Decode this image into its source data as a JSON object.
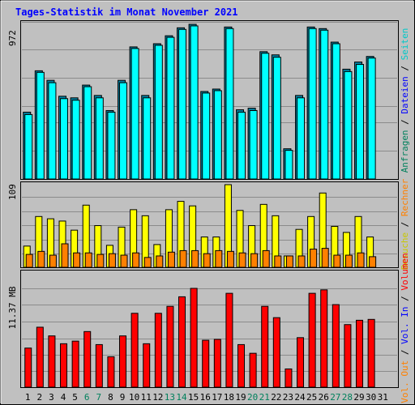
{
  "title": "Tages-Statistik im Monat November 2021",
  "colors": {
    "background": "#c0c0c0",
    "title": "#0000ff",
    "hits": "#00ffff",
    "files": "#0080ff",
    "pages": "#00ffff",
    "visits": "#ffff00",
    "sites": "#ff8000",
    "volume": "#ff0000",
    "volume_in": "#0000ff",
    "volume_out": "#ff8000",
    "weekend_day": "#00805c",
    "weekday": "#000000"
  },
  "right_labels": {
    "top": [
      {
        "text": "Anfragen",
        "color": "#00805c"
      },
      {
        "text": "Dateien",
        "color": "#0000ff"
      },
      {
        "text": "Seiten",
        "color": "#00c8c8"
      }
    ],
    "middle": [
      {
        "text": "Besuche",
        "color": "#c8c800"
      },
      {
        "text": "Rechner",
        "color": "#ff8000"
      }
    ],
    "bottom": [
      {
        "text": "Vol. Out",
        "color": "#ff8000"
      },
      {
        "text": "Vol. In",
        "color": "#0000ff"
      },
      {
        "text": "Volumen",
        "color": "#ff0000"
      }
    ],
    "separator": " / "
  },
  "chart_data": [
    {
      "type": "bar",
      "name": "hits-files",
      "ylabel": "972",
      "ylim": [
        0,
        972
      ],
      "categories": [
        "1",
        "2",
        "3",
        "4",
        "5",
        "6",
        "7",
        "8",
        "9",
        "10",
        "11",
        "12",
        "13",
        "14",
        "15",
        "16",
        "17",
        "18",
        "19",
        "20",
        "21",
        "22",
        "23",
        "24",
        "25",
        "26",
        "27",
        "28",
        "29",
        "30",
        "31"
      ],
      "series": [
        {
          "name": "Anfragen",
          "values": [
            420,
            680,
            620,
            520,
            510,
            590,
            525,
            430,
            620,
            830,
            525,
            850,
            900,
            950,
            972,
            550,
            565,
            955,
            435,
            445,
            800,
            780,
            190,
            525,
            955,
            945,
            860,
            690,
            735,
            770,
            0
          ]
        },
        {
          "name": "Dateien",
          "values": [
            405,
            670,
            605,
            505,
            495,
            580,
            510,
            420,
            605,
            820,
            510,
            840,
            890,
            940,
            962,
            540,
            555,
            945,
            420,
            430,
            790,
            765,
            180,
            510,
            945,
            935,
            850,
            675,
            720,
            760,
            0
          ]
        }
      ]
    },
    {
      "type": "bar",
      "name": "visits-sites",
      "ylabel": "109",
      "ylim": [
        0,
        109
      ],
      "categories": [
        "1",
        "2",
        "3",
        "4",
        "5",
        "6",
        "7",
        "8",
        "9",
        "10",
        "11",
        "12",
        "13",
        "14",
        "15",
        "16",
        "17",
        "18",
        "19",
        "20",
        "21",
        "22",
        "23",
        "24",
        "25",
        "26",
        "27",
        "28",
        "29",
        "30",
        "31"
      ],
      "series": [
        {
          "name": "Besuche",
          "values": [
            28,
            67,
            64,
            61,
            49,
            82,
            55,
            29,
            53,
            76,
            68,
            30,
            76,
            87,
            81,
            40,
            40,
            109,
            75,
            55,
            83,
            68,
            15,
            50,
            67,
            98,
            54,
            46,
            67,
            40,
            0
          ]
        },
        {
          "name": "Rechner",
          "values": [
            17,
            21,
            16,
            31,
            19,
            19,
            17,
            18,
            16,
            19,
            13,
            15,
            20,
            22,
            22,
            18,
            22,
            21,
            19,
            18,
            22,
            15,
            15,
            15,
            24,
            25,
            16,
            16,
            19,
            14,
            0
          ]
        }
      ]
    },
    {
      "type": "bar",
      "name": "volume",
      "ylabel": "11.37 MB",
      "ylim": [
        0,
        11.37
      ],
      "categories": [
        "1",
        "2",
        "3",
        "4",
        "5",
        "6",
        "7",
        "8",
        "9",
        "10",
        "11",
        "12",
        "13",
        "14",
        "15",
        "16",
        "17",
        "18",
        "19",
        "20",
        "21",
        "22",
        "23",
        "24",
        "25",
        "26",
        "27",
        "28",
        "29",
        "30",
        "31"
      ],
      "series": [
        {
          "name": "Volumen",
          "values": [
            4.5,
            6.9,
            5.9,
            5.0,
            5.3,
            6.4,
            4.9,
            3.5,
            5.9,
            8.5,
            5.0,
            8.5,
            9.3,
            10.4,
            11.37,
            5.4,
            5.5,
            10.8,
            4.9,
            3.9,
            9.3,
            8.0,
            2.1,
            5.7,
            10.8,
            11.2,
            9.5,
            7.2,
            7.7,
            7.8,
            0
          ]
        }
      ]
    }
  ],
  "weekend_days": [
    "6",
    "7",
    "13",
    "14",
    "20",
    "21",
    "27",
    "28"
  ]
}
